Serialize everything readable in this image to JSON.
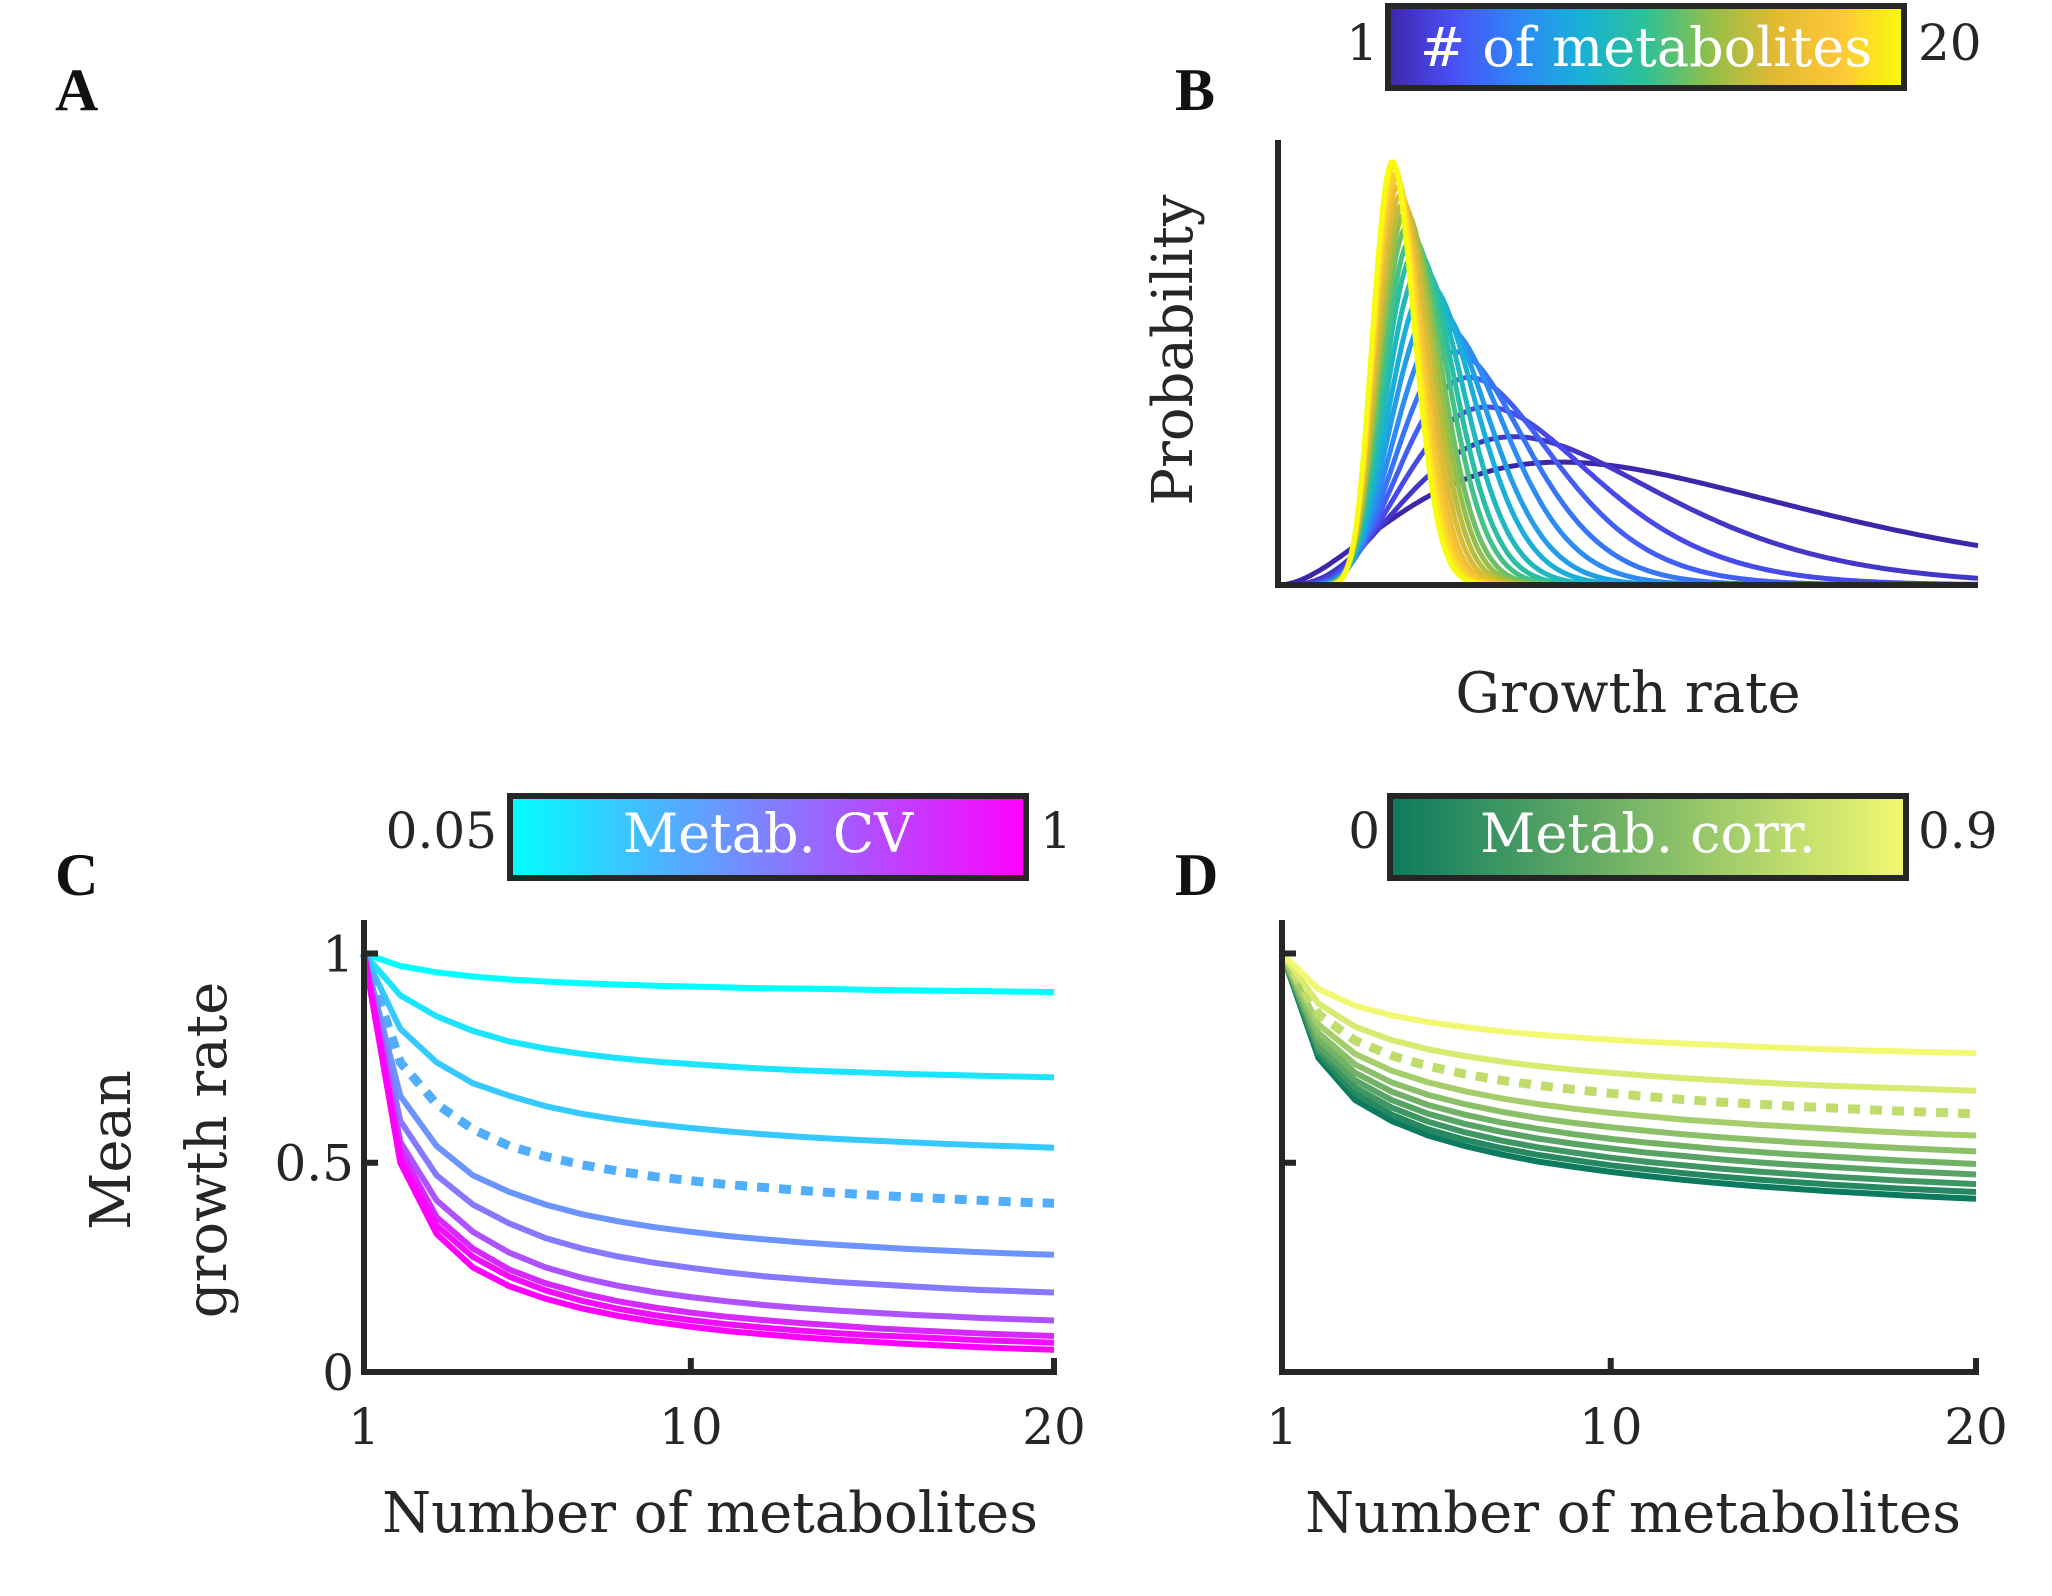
{
  "panel_labels": [
    "A",
    "B",
    "C",
    "D"
  ],
  "chart_data": [
    {
      "panel": "B",
      "type": "line",
      "xlabel": "Growth rate",
      "ylabel": "Probability",
      "colorbar": {
        "title": "# of metabolites",
        "min_label": "1",
        "max_label": "20",
        "colors": [
          "#3e26a8",
          "#4a4ff5",
          "#2e87f7",
          "#18b1d7",
          "#2ec196",
          "#92bf4a",
          "#e1ba33",
          "#fdc738",
          "#f9fb0e"
        ]
      },
      "x_range": [
        0,
        5.2
      ],
      "y_range": [
        0,
        1.05
      ],
      "series_count": 20,
      "curves": [
        {
          "metabolites": 1,
          "peak_x": 2.1,
          "peak_y": 0.29
        },
        {
          "metabolites": 2,
          "peak_x": 1.75,
          "peak_y": 0.35
        },
        {
          "metabolites": 3,
          "peak_x": 1.55,
          "peak_y": 0.42
        },
        {
          "metabolites": 4,
          "peak_x": 1.42,
          "peak_y": 0.49
        },
        {
          "metabolites": 5,
          "peak_x": 1.32,
          "peak_y": 0.55
        },
        {
          "metabolites": 6,
          "peak_x": 1.24,
          "peak_y": 0.61
        },
        {
          "metabolites": 7,
          "peak_x": 1.17,
          "peak_y": 0.66
        },
        {
          "metabolites": 8,
          "peak_x": 1.12,
          "peak_y": 0.71
        },
        {
          "metabolites": 9,
          "peak_x": 1.07,
          "peak_y": 0.75
        },
        {
          "metabolites": 10,
          "peak_x": 1.03,
          "peak_y": 0.79
        },
        {
          "metabolites": 11,
          "peak_x": 1.0,
          "peak_y": 0.82
        },
        {
          "metabolites": 12,
          "peak_x": 0.97,
          "peak_y": 0.85
        },
        {
          "metabolites": 13,
          "peak_x": 0.95,
          "peak_y": 0.88
        },
        {
          "metabolites": 14,
          "peak_x": 0.93,
          "peak_y": 0.9
        },
        {
          "metabolites": 15,
          "peak_x": 0.91,
          "peak_y": 0.92
        },
        {
          "metabolites": 16,
          "peak_x": 0.89,
          "peak_y": 0.94
        },
        {
          "metabolites": 17,
          "peak_x": 0.88,
          "peak_y": 0.96
        },
        {
          "metabolites": 18,
          "peak_x": 0.87,
          "peak_y": 0.97
        },
        {
          "metabolites": 19,
          "peak_x": 0.86,
          "peak_y": 0.99
        },
        {
          "metabolites": 20,
          "peak_x": 0.85,
          "peak_y": 1.0
        }
      ]
    },
    {
      "panel": "C",
      "type": "line",
      "xlabel": "Number of metabolites",
      "ylabel": [
        "Mean",
        "growth rate"
      ],
      "x_ticks": [
        "1",
        "10",
        "20"
      ],
      "y_ticks": [
        "0",
        "0.5",
        "1"
      ],
      "xlim": [
        1,
        20
      ],
      "ylim": [
        0,
        1.08
      ],
      "colorbar": {
        "title": "Metab. CV",
        "min_label": "0.05",
        "max_label": "1",
        "colors": [
          "#00ffff",
          "#ff00ff"
        ]
      },
      "x": [
        1,
        2,
        3,
        4,
        5,
        6,
        7,
        8,
        9,
        10,
        11,
        12,
        13,
        14,
        15,
        16,
        17,
        18,
        19,
        20
      ],
      "series": [
        {
          "cv": 0.05,
          "dashed": false,
          "values": [
            1,
            0.97,
            0.955,
            0.945,
            0.938,
            0.933,
            0.929,
            0.926,
            0.923,
            0.921,
            0.919,
            0.917,
            0.916,
            0.915,
            0.913,
            0.912,
            0.911,
            0.91,
            0.909,
            0.908
          ]
        },
        {
          "cv": 0.15,
          "dashed": false,
          "values": [
            1,
            0.9,
            0.85,
            0.815,
            0.79,
            0.773,
            0.76,
            0.75,
            0.742,
            0.736,
            0.73,
            0.725,
            0.721,
            0.718,
            0.715,
            0.712,
            0.71,
            0.708,
            0.706,
            0.704
          ]
        },
        {
          "cv": 0.25,
          "dashed": false,
          "values": [
            1,
            0.82,
            0.74,
            0.69,
            0.66,
            0.635,
            0.617,
            0.603,
            0.592,
            0.583,
            0.575,
            0.568,
            0.562,
            0.557,
            0.553,
            0.549,
            0.545,
            0.542,
            0.539,
            0.536
          ]
        },
        {
          "cv": 0.35,
          "dashed": true,
          "values": [
            1,
            0.74,
            0.64,
            0.58,
            0.54,
            0.515,
            0.495,
            0.48,
            0.467,
            0.457,
            0.448,
            0.441,
            0.434,
            0.428,
            0.423,
            0.418,
            0.414,
            0.41,
            0.406,
            0.403
          ]
        },
        {
          "cv": 0.45,
          "dashed": false,
          "values": [
            1,
            0.66,
            0.54,
            0.47,
            0.43,
            0.4,
            0.377,
            0.36,
            0.346,
            0.335,
            0.325,
            0.317,
            0.31,
            0.304,
            0.299,
            0.294,
            0.29,
            0.286,
            0.283,
            0.28
          ]
        },
        {
          "cv": 0.55,
          "dashed": false,
          "values": [
            1,
            0.6,
            0.47,
            0.4,
            0.355,
            0.32,
            0.295,
            0.276,
            0.261,
            0.249,
            0.238,
            0.229,
            0.222,
            0.215,
            0.21,
            0.205,
            0.2,
            0.196,
            0.193,
            0.19
          ]
        },
        {
          "cv": 0.7,
          "dashed": false,
          "values": [
            1,
            0.55,
            0.41,
            0.335,
            0.285,
            0.25,
            0.225,
            0.206,
            0.191,
            0.179,
            0.169,
            0.16,
            0.153,
            0.147,
            0.142,
            0.137,
            0.133,
            0.129,
            0.126,
            0.123
          ]
        },
        {
          "cv": 0.85,
          "dashed": false,
          "values": [
            1,
            0.53,
            0.37,
            0.295,
            0.245,
            0.212,
            0.188,
            0.169,
            0.154,
            0.142,
            0.132,
            0.124,
            0.117,
            0.111,
            0.105,
            0.1,
            0.096,
            0.092,
            0.089,
            0.086
          ]
        },
        {
          "cv": 0.95,
          "dashed": false,
          "values": [
            1,
            0.51,
            0.35,
            0.275,
            0.228,
            0.195,
            0.17,
            0.151,
            0.136,
            0.124,
            0.114,
            0.106,
            0.099,
            0.093,
            0.088,
            0.084,
            0.08,
            0.076,
            0.073,
            0.07
          ]
        },
        {
          "cv": 1.0,
          "dashed": false,
          "values": [
            1,
            0.5,
            0.33,
            0.25,
            0.205,
            0.175,
            0.152,
            0.134,
            0.12,
            0.108,
            0.098,
            0.09,
            0.083,
            0.077,
            0.072,
            0.067,
            0.063,
            0.059,
            0.056,
            0.053
          ]
        }
      ]
    },
    {
      "panel": "D",
      "type": "line",
      "xlabel": "Number of metabolites",
      "x_ticks": [
        "1",
        "10",
        "20"
      ],
      "xlim": [
        1,
        20
      ],
      "ylim": [
        0,
        1.08
      ],
      "colorbar": {
        "title": "Metab. corr.",
        "min_label": "0",
        "max_label": "0.9",
        "colors": [
          "#0b7a5e",
          "#f2f871"
        ]
      },
      "x": [
        1,
        2,
        3,
        4,
        5,
        6,
        7,
        8,
        9,
        10,
        11,
        12,
        13,
        14,
        15,
        16,
        17,
        18,
        19,
        20
      ],
      "series": [
        {
          "corr": 0.0,
          "dashed": false,
          "values": [
            1,
            0.75,
            0.65,
            0.6,
            0.565,
            0.54,
            0.52,
            0.503,
            0.49,
            0.478,
            0.468,
            0.459,
            0.451,
            0.444,
            0.438,
            0.432,
            0.427,
            0.422,
            0.418,
            0.414
          ]
        },
        {
          "corr": 0.1,
          "dashed": false,
          "values": [
            1,
            0.76,
            0.665,
            0.615,
            0.58,
            0.555,
            0.535,
            0.519,
            0.506,
            0.494,
            0.484,
            0.475,
            0.467,
            0.46,
            0.454,
            0.448,
            0.443,
            0.438,
            0.434,
            0.43
          ]
        },
        {
          "corr": 0.2,
          "dashed": false,
          "values": [
            1,
            0.77,
            0.68,
            0.632,
            0.598,
            0.573,
            0.553,
            0.537,
            0.524,
            0.512,
            0.502,
            0.494,
            0.486,
            0.479,
            0.473,
            0.467,
            0.462,
            0.457,
            0.453,
            0.449
          ]
        },
        {
          "corr": 0.3,
          "dashed": false,
          "values": [
            1,
            0.78,
            0.697,
            0.65,
            0.617,
            0.593,
            0.574,
            0.558,
            0.545,
            0.534,
            0.524,
            0.516,
            0.508,
            0.501,
            0.495,
            0.49,
            0.485,
            0.48,
            0.476,
            0.472
          ]
        },
        {
          "corr": 0.4,
          "dashed": false,
          "values": [
            1,
            0.795,
            0.715,
            0.67,
            0.638,
            0.615,
            0.596,
            0.581,
            0.568,
            0.557,
            0.548,
            0.54,
            0.532,
            0.526,
            0.52,
            0.515,
            0.51,
            0.505,
            0.501,
            0.497
          ]
        },
        {
          "corr": 0.5,
          "dashed": false,
          "values": [
            1,
            0.81,
            0.735,
            0.692,
            0.662,
            0.64,
            0.622,
            0.607,
            0.595,
            0.585,
            0.576,
            0.568,
            0.561,
            0.555,
            0.549,
            0.544,
            0.539,
            0.535,
            0.531,
            0.527
          ]
        },
        {
          "corr": 0.6,
          "dashed": false,
          "values": [
            1,
            0.83,
            0.76,
            0.72,
            0.692,
            0.671,
            0.654,
            0.64,
            0.629,
            0.619,
            0.611,
            0.603,
            0.597,
            0.591,
            0.586,
            0.581,
            0.576,
            0.572,
            0.568,
            0.565
          ]
        },
        {
          "corr": 0.7,
          "dashed": true,
          "values": [
            1,
            0.855,
            0.792,
            0.756,
            0.731,
            0.712,
            0.697,
            0.685,
            0.675,
            0.666,
            0.658,
            0.651,
            0.645,
            0.64,
            0.635,
            0.631,
            0.627,
            0.623,
            0.62,
            0.617
          ]
        },
        {
          "corr": 0.8,
          "dashed": false,
          "values": [
            1,
            0.88,
            0.825,
            0.793,
            0.771,
            0.755,
            0.742,
            0.731,
            0.722,
            0.715,
            0.708,
            0.702,
            0.697,
            0.692,
            0.688,
            0.684,
            0.681,
            0.678,
            0.675,
            0.672
          ]
        },
        {
          "corr": 0.9,
          "dashed": false,
          "values": [
            1,
            0.915,
            0.875,
            0.852,
            0.836,
            0.824,
            0.814,
            0.806,
            0.8,
            0.794,
            0.789,
            0.785,
            0.781,
            0.777,
            0.774,
            0.771,
            0.768,
            0.766,
            0.764,
            0.762
          ]
        }
      ]
    }
  ]
}
